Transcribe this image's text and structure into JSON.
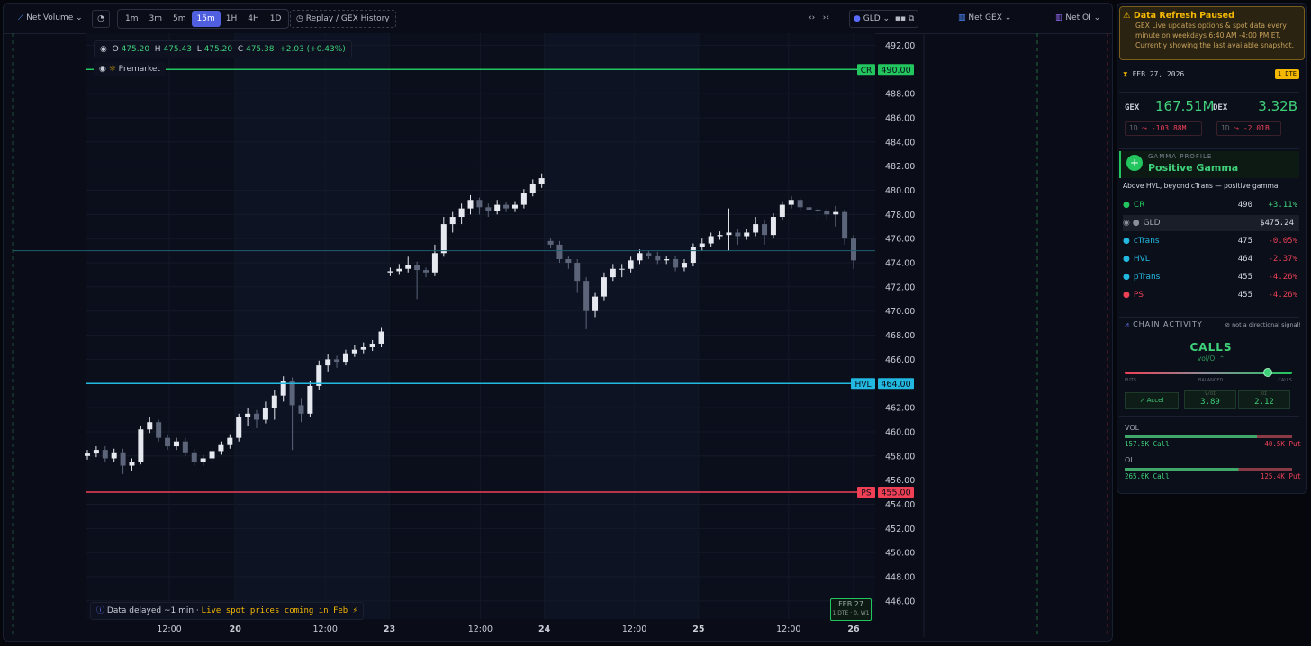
{
  "toolbar": {
    "indicator": "Net Volume",
    "timeframes": [
      "1m",
      "3m",
      "5m",
      "15m",
      "1H",
      "4H",
      "1D"
    ],
    "active_timeframe": "15m",
    "replay": "Replay / GEX History",
    "symbol": "GLD",
    "net_gex": "Net GEX",
    "net_oi": "Net OI"
  },
  "legend": {
    "o_label": "O",
    "o": "475.20",
    "h_label": "H",
    "h": "475.43",
    "l_label": "L",
    "l": "475.20",
    "c_label": "C",
    "c": "475.38",
    "change": "+2.03 (+0.43%)",
    "premarket": "Premarket"
  },
  "chart_data": {
    "type": "candlestick",
    "up_color": "#e6e9ef",
    "down_color": "#5b6478",
    "xlim": [
      0,
      86
    ],
    "xticks": [
      {
        "value": 9.2,
        "label": "12:00"
      },
      {
        "value": 16.6,
        "label": "20"
      },
      {
        "value": 26.7,
        "label": "12:00"
      },
      {
        "value": 33.9,
        "label": "23"
      },
      {
        "value": 44.1,
        "label": "12:00"
      },
      {
        "value": 51.3,
        "label": "24"
      },
      {
        "value": 61.4,
        "label": "12:00"
      },
      {
        "value": 68.6,
        "label": "25"
      },
      {
        "value": 78.7,
        "label": "12:00"
      },
      {
        "value": 86,
        "label": "26"
      }
    ],
    "ylim": [
      444.5,
      493
    ],
    "yticks": [
      {
        "value": 446,
        "label": "446.00"
      },
      {
        "value": 448,
        "label": "448.00"
      },
      {
        "value": 450,
        "label": "450.00"
      },
      {
        "value": 452,
        "label": "452.00"
      },
      {
        "value": 454,
        "label": "454.00"
      },
      {
        "value": 456,
        "label": "456.00"
      },
      {
        "value": 458,
        "label": "458.00"
      },
      {
        "value": 460,
        "label": "460.00"
      },
      {
        "value": 462,
        "label": "462.00"
      },
      {
        "value": 466,
        "label": "466.00"
      },
      {
        "value": 468,
        "label": "468.00"
      },
      {
        "value": 470,
        "label": "470.00"
      },
      {
        "value": 472,
        "label": "472.00"
      },
      {
        "value": 474,
        "label": "474.00"
      },
      {
        "value": 476,
        "label": "476.00"
      },
      {
        "value": 478,
        "label": "478.00"
      },
      {
        "value": 480,
        "label": "480.00"
      },
      {
        "value": 482,
        "label": "482.00"
      },
      {
        "value": 484,
        "label": "484.00"
      },
      {
        "value": 486,
        "label": "486.00"
      },
      {
        "value": 488,
        "label": "488.00"
      },
      {
        "value": 492,
        "label": "492.00"
      }
    ],
    "grid": true,
    "levels": [
      {
        "name": "CR",
        "value": 490,
        "label": "490.00",
        "color": "#22c55e"
      },
      {
        "name": "HVL",
        "value": 464,
        "label": "464.00",
        "color": "#22b8e0"
      },
      {
        "name": "PS",
        "value": 455,
        "label": "455.00",
        "color": "#ef4056"
      }
    ],
    "reference_line": {
      "value": 475,
      "color": "#1d5f70"
    },
    "candles": [
      [
        458.0,
        458.5,
        457.7,
        458.2
      ],
      [
        458.2,
        458.8,
        457.9,
        458.5
      ],
      [
        458.5,
        458.8,
        457.5,
        457.8
      ],
      [
        457.8,
        458.6,
        457.5,
        458.3
      ],
      [
        458.3,
        458.6,
        456.5,
        457.2
      ],
      [
        457.2,
        457.8,
        456.8,
        457.5
      ],
      [
        457.5,
        460.5,
        457.3,
        460.2
      ],
      [
        460.2,
        461.2,
        459.9,
        460.8
      ],
      [
        460.8,
        461.0,
        459.2,
        459.5
      ],
      [
        459.5,
        459.8,
        458.5,
        458.8
      ],
      [
        458.8,
        459.5,
        458.5,
        459.2
      ],
      [
        459.2,
        459.5,
        458.0,
        458.3
      ],
      [
        458.3,
        458.6,
        457.2,
        457.5
      ],
      [
        457.5,
        458.1,
        457.2,
        457.8
      ],
      [
        457.8,
        458.7,
        457.5,
        458.4
      ],
      [
        458.4,
        459.2,
        458.1,
        458.9
      ],
      [
        458.9,
        459.8,
        458.6,
        459.5
      ],
      [
        459.5,
        461.5,
        459.2,
        461.2
      ],
      [
        461.2,
        462.0,
        460.5,
        461.5
      ],
      [
        461.5,
        461.8,
        460.3,
        461.0
      ],
      [
        461.0,
        462.5,
        460.7,
        462.0
      ],
      [
        462.0,
        463.5,
        461.0,
        463.0
      ],
      [
        463.0,
        464.6,
        462.5,
        464.2
      ],
      [
        464.2,
        464.5,
        458.5,
        462.2
      ],
      [
        462.2,
        462.8,
        460.8,
        461.5
      ],
      [
        461.5,
        464.2,
        461.2,
        463.8
      ],
      [
        463.8,
        465.9,
        463.5,
        465.5
      ],
      [
        465.5,
        466.4,
        465.0,
        466.0
      ],
      [
        466.0,
        466.3,
        465.3,
        465.8
      ],
      [
        465.8,
        466.8,
        465.5,
        466.5
      ],
      [
        466.5,
        467.2,
        466.2,
        466.8
      ],
      [
        466.8,
        467.4,
        466.5,
        467.0
      ],
      [
        467.0,
        467.6,
        466.7,
        467.3
      ],
      [
        467.3,
        468.6,
        467.0,
        468.3
      ],
      [
        473.2,
        473.6,
        472.9,
        473.3
      ],
      [
        473.3,
        473.9,
        473.0,
        473.5
      ],
      [
        473.5,
        474.5,
        473.2,
        473.8
      ],
      [
        473.8,
        474.1,
        471.0,
        473.4
      ],
      [
        473.4,
        473.6,
        472.8,
        473.2
      ],
      [
        473.2,
        475.5,
        472.9,
        474.8
      ],
      [
        474.8,
        477.8,
        474.5,
        477.2
      ],
      [
        477.2,
        478.2,
        476.5,
        477.8
      ],
      [
        477.8,
        478.9,
        477.2,
        478.5
      ],
      [
        478.5,
        479.6,
        478.0,
        479.2
      ],
      [
        479.2,
        479.4,
        478.0,
        478.6
      ],
      [
        478.6,
        478.9,
        477.8,
        478.3
      ],
      [
        478.3,
        479.2,
        478.0,
        478.8
      ],
      [
        478.8,
        479.0,
        478.2,
        478.5
      ],
      [
        478.5,
        479.1,
        478.2,
        478.8
      ],
      [
        478.8,
        480.1,
        478.5,
        479.8
      ],
      [
        479.8,
        480.9,
        479.5,
        480.5
      ],
      [
        480.5,
        481.4,
        480.2,
        481.0
      ],
      [
        475.8,
        476.0,
        475.2,
        475.5
      ],
      [
        475.5,
        475.8,
        474.0,
        474.3
      ],
      [
        474.3,
        474.6,
        473.5,
        474.0
      ],
      [
        474.0,
        474.3,
        471.5,
        472.5
      ],
      [
        472.5,
        472.8,
        468.5,
        470.0
      ],
      [
        470.0,
        471.5,
        469.5,
        471.2
      ],
      [
        471.2,
        473.2,
        470.9,
        472.8
      ],
      [
        472.8,
        473.9,
        472.5,
        473.5
      ],
      [
        473.5,
        473.9,
        472.8,
        473.5
      ],
      [
        473.5,
        474.5,
        473.2,
        474.2
      ],
      [
        474.2,
        475.1,
        473.9,
        474.8
      ],
      [
        474.8,
        475.0,
        474.3,
        474.6
      ],
      [
        474.6,
        474.9,
        473.9,
        474.2
      ],
      [
        474.2,
        474.6,
        473.9,
        474.3
      ],
      [
        474.3,
        474.6,
        473.3,
        473.6
      ],
      [
        473.6,
        474.3,
        473.3,
        474.0
      ],
      [
        474.0,
        475.6,
        473.7,
        475.3
      ],
      [
        475.3,
        476.0,
        475.0,
        475.6
      ],
      [
        475.6,
        476.5,
        475.3,
        476.2
      ],
      [
        476.2,
        476.6,
        475.9,
        476.3
      ],
      [
        476.3,
        478.5,
        475.0,
        476.5
      ],
      [
        476.5,
        476.8,
        475.5,
        476.2
      ],
      [
        476.2,
        476.8,
        475.9,
        476.5
      ],
      [
        476.5,
        477.8,
        476.2,
        477.2
      ],
      [
        477.2,
        477.5,
        475.5,
        476.3
      ],
      [
        476.3,
        478.1,
        476.0,
        477.8
      ],
      [
        477.8,
        479.1,
        477.5,
        478.8
      ],
      [
        478.8,
        479.5,
        478.5,
        479.2
      ],
      [
        479.2,
        479.4,
        478.3,
        478.6
      ],
      [
        478.6,
        478.8,
        478.1,
        478.4
      ],
      [
        478.4,
        478.6,
        477.5,
        478.3
      ],
      [
        478.3,
        478.5,
        477.6,
        478.0
      ],
      [
        478.0,
        478.7,
        477.0,
        478.2
      ],
      [
        478.2,
        478.4,
        475.5,
        476.0
      ],
      [
        476.0,
        476.3,
        473.5,
        474.2
      ]
    ]
  },
  "footer": {
    "delay": "Data delayed ~1 min",
    "separator": "·",
    "notice": "Live spot prices coming in Feb ⚡",
    "expiry": "FEB 27",
    "expiry_detail": "1 DTE · 0, W1"
  },
  "panel": {
    "alert_title": "Data Refresh Paused",
    "alert_text": "GEX Live updates options & spot data every minute on weekdays 6:40 AM -4:00 PM ET. Currently showing the last available snapshot.",
    "date": "FEB 27, 2026",
    "dte": "1 DTE",
    "gex_label": "GEX",
    "gex": "167.51M",
    "gex_period": "1D",
    "gex_change": "-103.88M",
    "dex_label": "DEX",
    "dex": "3.32B",
    "dex_period": "1D",
    "dex_change": "-2.01B",
    "profile_label": "GAMMA PROFILE",
    "profile": "Positive Gamma",
    "profile_desc": "Above HVL, beyond cTrans — positive gamma",
    "rows": [
      {
        "name": "CR",
        "strike": "490",
        "change": "+3.11%",
        "color": "#22c55e"
      },
      {
        "name": "GLD",
        "strike": "$475.24",
        "change": null,
        "color": "#8a8f99"
      },
      {
        "name": "cTrans",
        "strike": "475",
        "change": "-0.05%",
        "color": "#22b8e0"
      },
      {
        "name": "HVL",
        "strike": "464",
        "change": "-2.37%",
        "color": "#22b8e0"
      },
      {
        "name": "pTrans",
        "strike": "455",
        "change": "-4.26%",
        "color": "#22b8e0"
      },
      {
        "name": "PS",
        "strike": "455",
        "change": "-4.26%",
        "color": "#ef4056"
      }
    ],
    "chain_label": "CHAIN ACTIVITY",
    "chain_note": "not a directional signal!",
    "signal": "CALLS",
    "signal_sub": "vol/OI",
    "scale_left": "PUTS",
    "scale_mid": "BALANCED",
    "scale_right": "CALLS",
    "accel": "Accel",
    "voi_label": "V/OI",
    "voi": "3.89",
    "oi_label": "OI",
    "oi_ratio": "2.12",
    "vol_label": "VOL",
    "vol_call": "157.5K Call",
    "vol_put": "40.5K Put",
    "oi_title": "OI",
    "oi_call": "265.6K Call",
    "oi_put": "125.4K Put"
  }
}
